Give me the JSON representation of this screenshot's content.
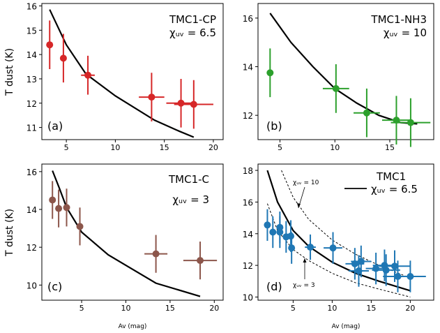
{
  "figure": {
    "ylabel_top": "T dust (K)",
    "ylabel_bottom": "T dust (K)",
    "xlabel_left": "Av (mag)",
    "xlabel_right": "Av (mag)"
  },
  "chart_data": [
    {
      "id": "a",
      "type": "scatter",
      "panel_label": "(a)",
      "annotation_name": "TMC1-CP",
      "annotation_chi": "χᵤᵥ = 6.5",
      "color": "#d62728",
      "xlim": [
        2.5,
        21
      ],
      "ylim": [
        10.5,
        16.1
      ],
      "xticks": [
        "5",
        "10",
        "15",
        "20"
      ],
      "xtick_values": [
        5,
        10,
        15,
        20
      ],
      "yticks": [
        "11",
        "12",
        "13",
        "14",
        "15",
        "16"
      ],
      "ytick_values": [
        11,
        12,
        13,
        14,
        15,
        16
      ],
      "points": [
        {
          "x": 3.3,
          "y": 14.4,
          "xerr": 0,
          "yerr": 1.0
        },
        {
          "x": 4.7,
          "y": 13.85,
          "xerr": 0.3,
          "yerr": 1.0
        },
        {
          "x": 7.2,
          "y": 13.15,
          "xerr": 0.7,
          "yerr": 0.8
        },
        {
          "x": 13.7,
          "y": 12.25,
          "xerr": 1.3,
          "yerr": 1.0
        },
        {
          "x": 16.7,
          "y": 12.0,
          "xerr": 1.5,
          "yerr": 1.0
        },
        {
          "x": 18.0,
          "y": 11.95,
          "xerr": 2.0,
          "yerr": 1.0
        }
      ],
      "model": {
        "style": "solid",
        "x": [
          3.3,
          5,
          7,
          10,
          14,
          16.5,
          18
        ],
        "y": [
          15.85,
          14.4,
          13.2,
          12.3,
          11.3,
          10.85,
          10.6
        ]
      }
    },
    {
      "id": "b",
      "type": "scatter",
      "panel_label": "(b)",
      "annotation_name": "TMC1-NH3",
      "annotation_chi": "χᵤᵥ = 10",
      "color": "#2ca02c",
      "xlim": [
        3,
        19
      ],
      "ylim": [
        11,
        16.6
      ],
      "xticks": [
        "5",
        "10",
        "15"
      ],
      "xtick_values": [
        5,
        10,
        15
      ],
      "yticks": [
        "12",
        "14",
        "16"
      ],
      "ytick_values": [
        12,
        14,
        16
      ],
      "points": [
        {
          "x": 4.1,
          "y": 13.75,
          "xerr": 0.25,
          "yerr": 1.0
        },
        {
          "x": 10.1,
          "y": 13.1,
          "xerr": 1.2,
          "yerr": 1.0
        },
        {
          "x": 12.9,
          "y": 12.1,
          "xerr": 1.2,
          "yerr": 1.0
        },
        {
          "x": 15.6,
          "y": 11.8,
          "xerr": 1.3,
          "yerr": 1.0
        },
        {
          "x": 16.9,
          "y": 11.7,
          "xerr": 1.8,
          "yerr": 1.0
        }
      ],
      "model": {
        "style": "solid",
        "x": [
          4.1,
          6,
          8,
          10,
          12,
          14,
          16,
          17.5
        ],
        "y": [
          16.2,
          15.0,
          14.0,
          13.1,
          12.5,
          12.0,
          11.7,
          11.65
        ]
      }
    },
    {
      "id": "c",
      "type": "scatter",
      "panel_label": "(c)",
      "annotation_name": "TMC1-C",
      "annotation_chi": "χᵤᵥ = 3",
      "color": "#8c564b",
      "xlim": [
        0.5,
        21
      ],
      "ylim": [
        9.2,
        16.4
      ],
      "xticks": [
        "5",
        "10",
        "15",
        "20"
      ],
      "xtick_values": [
        5,
        10,
        15,
        20
      ],
      "yticks": [
        "10",
        "12",
        "14",
        "16"
      ],
      "ytick_values": [
        10,
        12,
        14,
        16
      ],
      "points": [
        {
          "x": 1.7,
          "y": 14.5,
          "xerr": 0,
          "yerr": 1.0
        },
        {
          "x": 2.4,
          "y": 14.05,
          "xerr": 0,
          "yerr": 1.0
        },
        {
          "x": 3.3,
          "y": 14.1,
          "xerr": 0.2,
          "yerr": 1.0
        },
        {
          "x": 4.8,
          "y": 13.1,
          "xerr": 0.3,
          "yerr": 1.0
        },
        {
          "x": 13.4,
          "y": 11.65,
          "xerr": 1.3,
          "yerr": 1.0
        },
        {
          "x": 18.4,
          "y": 11.3,
          "xerr": 1.9,
          "yerr": 1.0
        }
      ],
      "model": {
        "style": "solid",
        "x": [
          1.7,
          2.5,
          3.3,
          5,
          8,
          13.4,
          18.4
        ],
        "y": [
          16.05,
          15.1,
          14.1,
          12.8,
          11.6,
          10.1,
          9.4
        ]
      }
    },
    {
      "id": "d",
      "type": "scatter",
      "panel_label": "(d)",
      "annotation_name": "TMC1",
      "annotation_chi": "χᵤᵥ = 6.5",
      "annotation_upper": "χᵤᵥ = 10",
      "annotation_lower": "χᵤᵥ = 3",
      "color": "#1f77b4",
      "xlim": [
        0.5,
        23
      ],
      "ylim": [
        9.8,
        18.4
      ],
      "xticks": [
        "5",
        "10",
        "15",
        "20"
      ],
      "xtick_values": [
        5,
        10,
        15,
        20
      ],
      "yticks": [
        "10",
        "12",
        "14",
        "16",
        "18"
      ],
      "ytick_values": [
        10,
        12,
        14,
        16,
        18
      ],
      "points": [
        {
          "x": 1.7,
          "y": 14.55,
          "xerr": 0,
          "yerr": 1.0
        },
        {
          "x": 2.4,
          "y": 14.1,
          "xerr": 0,
          "yerr": 1.0
        },
        {
          "x": 3.3,
          "y": 14.4,
          "xerr": 0.2,
          "yerr": 1.0
        },
        {
          "x": 3.3,
          "y": 14.1,
          "xerr": 0.2,
          "yerr": 1.0
        },
        {
          "x": 4.1,
          "y": 13.8,
          "xerr": 0.25,
          "yerr": 1.0
        },
        {
          "x": 4.7,
          "y": 13.85,
          "xerr": 0.3,
          "yerr": 1.0
        },
        {
          "x": 4.8,
          "y": 13.1,
          "xerr": 0.3,
          "yerr": 1.0
        },
        {
          "x": 7.2,
          "y": 13.15,
          "xerr": 0.7,
          "yerr": 0.8
        },
        {
          "x": 10.1,
          "y": 13.1,
          "xerr": 1.2,
          "yerr": 1.0
        },
        {
          "x": 12.9,
          "y": 12.1,
          "xerr": 1.2,
          "yerr": 1.0
        },
        {
          "x": 13.4,
          "y": 11.65,
          "xerr": 1.3,
          "yerr": 1.0
        },
        {
          "x": 13.7,
          "y": 12.25,
          "xerr": 1.3,
          "yerr": 1.0
        },
        {
          "x": 15.6,
          "y": 11.8,
          "xerr": 1.3,
          "yerr": 1.0
        },
        {
          "x": 16.7,
          "y": 12.0,
          "xerr": 1.5,
          "yerr": 1.0
        },
        {
          "x": 16.9,
          "y": 11.7,
          "xerr": 1.8,
          "yerr": 1.0
        },
        {
          "x": 18.0,
          "y": 11.95,
          "xerr": 2.0,
          "yerr": 1.0
        },
        {
          "x": 18.4,
          "y": 11.3,
          "xerr": 1.9,
          "yerr": 1.0
        },
        {
          "x": 20.0,
          "y": 11.3,
          "xerr": 2.0,
          "yerr": 1.0
        }
      ],
      "models": [
        {
          "name": "χᵤᵥ = 6.5",
          "style": "solid",
          "x": [
            1.7,
            3,
            5,
            7,
            10,
            13,
            16,
            20
          ],
          "y": [
            18.0,
            16.0,
            14.2,
            13.2,
            12.2,
            11.5,
            11.0,
            10.4
          ]
        },
        {
          "name": "χᵤᵥ = 10",
          "style": "dashed",
          "x": [
            3.5,
            5,
            7,
            10,
            13,
            16,
            20
          ],
          "y": [
            18.0,
            16.3,
            14.9,
            13.6,
            12.7,
            12.0,
            11.2
          ]
        },
        {
          "name": "χᵤᵥ = 3",
          "style": "dashed",
          "x": [
            1.7,
            3,
            5,
            7,
            10,
            13,
            16,
            20
          ],
          "y": [
            15.9,
            14.2,
            13.0,
            12.3,
            11.5,
            10.9,
            10.5,
            10.0
          ]
        }
      ]
    }
  ]
}
